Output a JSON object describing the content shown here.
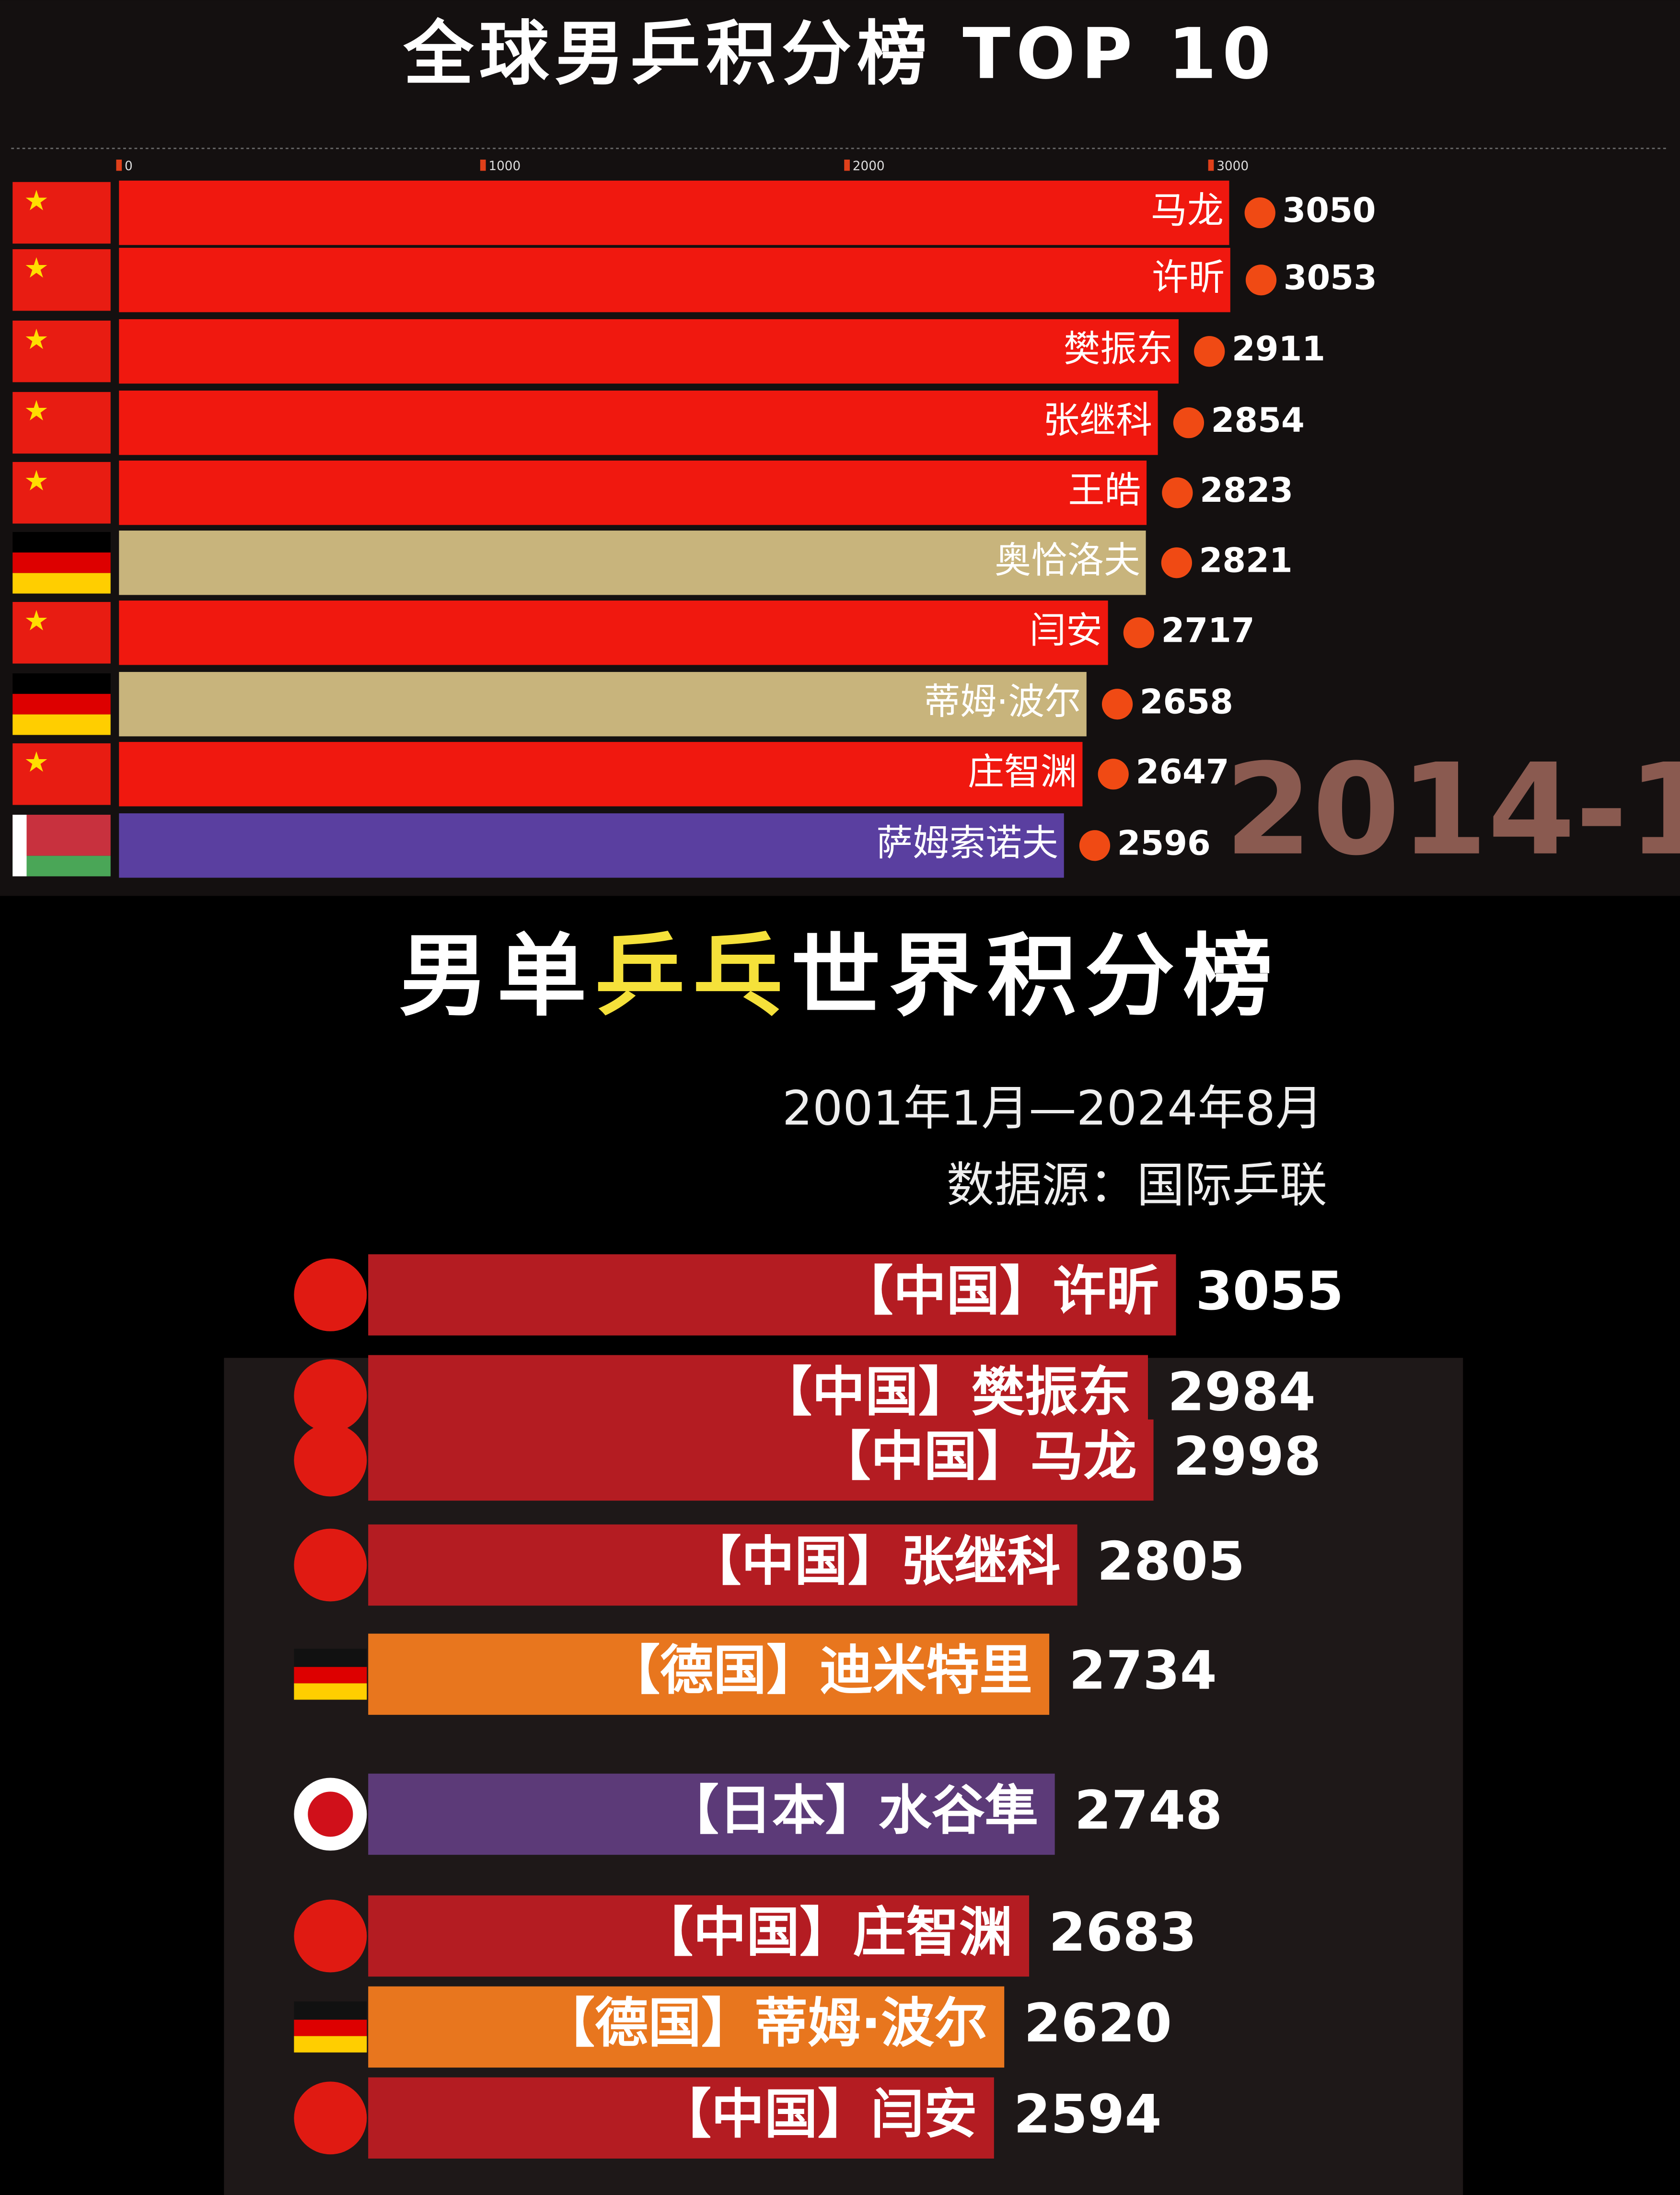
{
  "chart_data": [
    {
      "type": "bar",
      "orientation": "horizontal",
      "title": "全球男乒积分榜 TOP 10",
      "categories": [
        "马龙",
        "许昕",
        "樊振东",
        "张继科",
        "王皓",
        "奥恰洛夫",
        "闫安",
        "蒂姆·波尔",
        "庄智渊",
        "萨姆索诺夫"
      ],
      "values": [
        3050,
        3053,
        2911,
        2854,
        2823,
        2821,
        2717,
        2658,
        2647,
        2596
      ],
      "colors": [
        "#f0180f",
        "#f0180f",
        "#f0180f",
        "#f0180f",
        "#f0180f",
        "#c8b47c",
        "#f0180f",
        "#c8b47c",
        "#f0180f",
        "#5a3fa0"
      ],
      "xlim": [
        0,
        4250
      ],
      "xticks": [
        0,
        1000,
        2000,
        3000
      ],
      "annotation": "2014-1"
    },
    {
      "type": "bar",
      "orientation": "horizontal",
      "title_parts": [
        "男单",
        "乒乓",
        "世界积分榜"
      ],
      "subtitle": "2001年1月—2024年8月",
      "source": "数据源：国际乒联",
      "categories": [
        "【中国】许昕",
        "【中国】樊振东",
        "【中国】马龙",
        "【中国】张继科",
        "【德国】迪米特里",
        "【日本】水谷隼",
        "【中国】庄智渊",
        "【德国】蒂姆·波尔",
        "【中国】闫安"
      ],
      "values": [
        3055,
        2984,
        2998,
        2805,
        2734,
        2748,
        2683,
        2620,
        2594
      ],
      "colors": [
        "#b41c22",
        "#b41c22",
        "#b41c22",
        "#b41c22",
        "#e8761e",
        "#5c3a78",
        "#b41c22",
        "#e8761e",
        "#b41c22"
      ]
    }
  ]
}
